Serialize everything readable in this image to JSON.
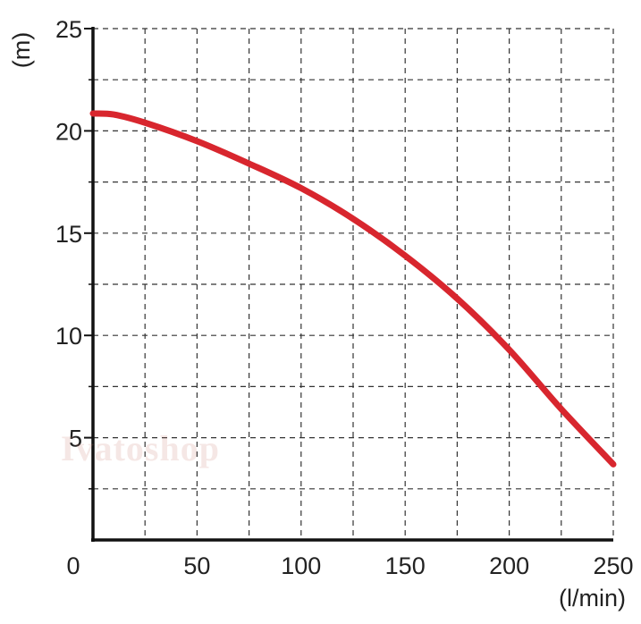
{
  "chart_data": {
    "type": "line",
    "title": "",
    "xlabel": "(l/min)",
    "ylabel": "(m)",
    "xlim": [
      0,
      250
    ],
    "ylim": [
      0,
      25
    ],
    "x_ticks": [
      0,
      50,
      100,
      150,
      200,
      250
    ],
    "y_ticks": [
      5,
      10,
      15,
      20,
      25
    ],
    "grid": true,
    "grid_style": "dashed",
    "series": [
      {
        "color": "#d8262e",
        "x": [
          0,
          10,
          25,
          50,
          75,
          100,
          125,
          150,
          175,
          200,
          225,
          250
        ],
        "y": [
          20.85,
          20.8,
          20.4,
          19.5,
          18.4,
          17.2,
          15.7,
          13.9,
          11.8,
          9.3,
          6.4,
          3.7
        ]
      }
    ]
  },
  "watermark": "Ivatoshop"
}
